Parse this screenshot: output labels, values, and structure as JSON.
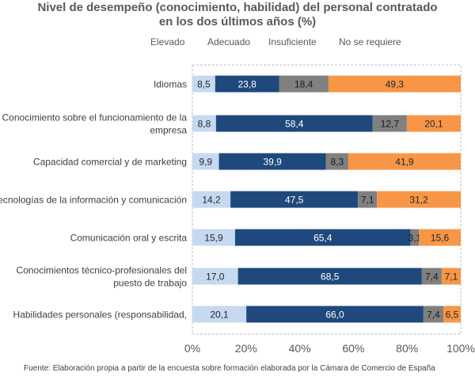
{
  "title_line1": "Nivel de desempeño (conocimiento, habilidad) del personal contratado",
  "title_line2": "en los dos últimos años (%)",
  "source": "Fuente: Elaboración propia a partir de  la encuesta  sobre formación  elaborada por la Cámara de Comercio de España",
  "colors": {
    "Elevado": "#c6d9f1",
    "Adecuado": "#1f497d",
    "Insuficiente": "#808080",
    "No se requiere": "#f79646"
  },
  "chart_data": {
    "type": "bar",
    "orientation": "horizontal",
    "stacked": "percent",
    "title": "Nivel de desempeño (conocimiento, habilidad) del personal contratado en los dos últimos años (%)",
    "legend": [
      "Elevado",
      "Adecuado",
      "Insuficiente",
      "No se requiere"
    ],
    "legend_position": "top",
    "categories": [
      [
        "Idiomas"
      ],
      [
        "Conocimiento sobre el funcionamiento de la",
        "empresa"
      ],
      [
        "Capacidad comercial y de marketing"
      ],
      [
        "Tecnologías de la información y comunicación"
      ],
      [
        "Comunicación oral y escrita"
      ],
      [
        "Conocimientos técnico-profesionales del",
        "puesto de trabajo"
      ],
      [
        "Habilidades personales (responsabilidad,"
      ]
    ],
    "series": [
      {
        "name": "Elevado",
        "values": [
          8.5,
          8.8,
          9.9,
          14.2,
          15.9,
          17.0,
          20.1
        ],
        "labels": [
          "8,5",
          "8,8",
          "9,9",
          "14,2",
          "15,9",
          "17,0",
          "20,1"
        ]
      },
      {
        "name": "Adecuado",
        "values": [
          23.8,
          58.4,
          39.9,
          47.5,
          65.4,
          68.5,
          66.0
        ],
        "labels": [
          "23,8",
          "58,4",
          "39,9",
          "47,5",
          "65,4",
          "68,5",
          "66,0"
        ]
      },
      {
        "name": "Insuficiente",
        "values": [
          18.4,
          12.7,
          8.3,
          7.1,
          3.1,
          7.4,
          7.4
        ],
        "labels": [
          "18,4",
          "12,7",
          "8,3",
          "7,1",
          "3,1",
          "7,4",
          "7,4"
        ]
      },
      {
        "name": "No se requiere",
        "values": [
          49.3,
          20.1,
          41.9,
          31.2,
          15.6,
          7.1,
          6.5
        ],
        "labels": [
          "49,3",
          "20,1",
          "41,9",
          "31,2",
          "15,6",
          "7,1",
          "6,5"
        ]
      }
    ],
    "xlim": [
      0,
      100
    ],
    "xticks": [
      "0%",
      "20%",
      "40%",
      "60%",
      "80%",
      "100%"
    ]
  }
}
